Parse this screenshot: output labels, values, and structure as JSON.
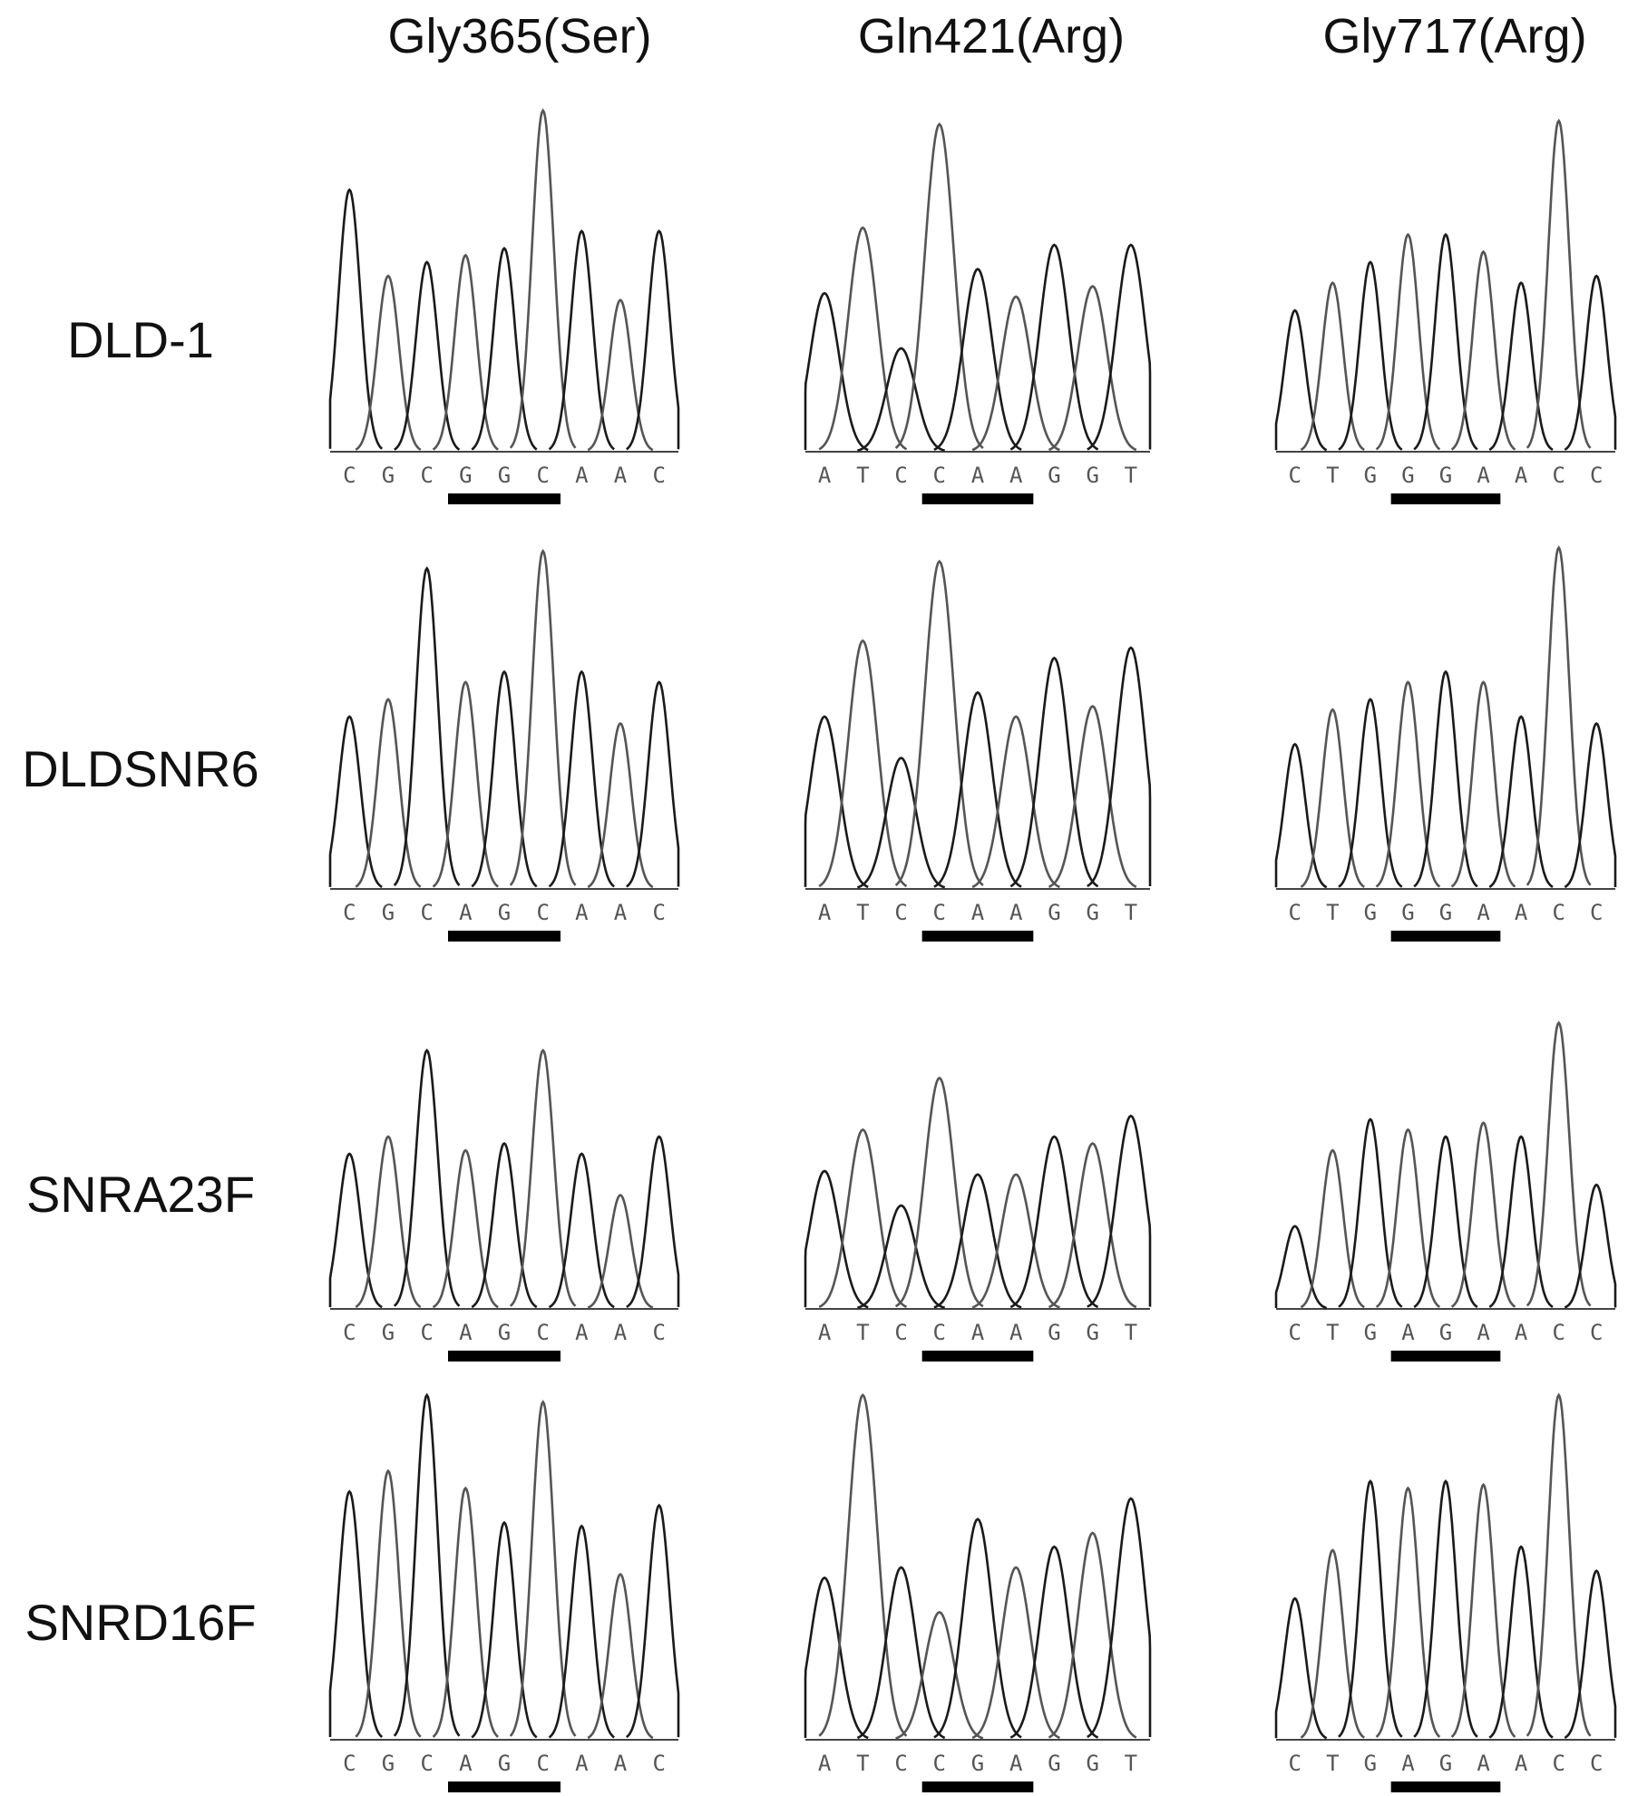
{
  "headers": [
    "Gly365(Ser)",
    "Gln421(Arg)",
    "Gly717(Arg)"
  ],
  "rows": [
    {
      "label": "DLD-1",
      "sequences": [
        [
          "C",
          "G",
          "C",
          "G",
          "G",
          "C",
          "A",
          "A",
          "C"
        ],
        [
          "A",
          "T",
          "C",
          "C",
          "A",
          "A",
          "G",
          "G",
          "T"
        ],
        [
          "C",
          "T",
          "G",
          "G",
          "G",
          "A",
          "A",
          "C",
          "C"
        ]
      ]
    },
    {
      "label": "DLDSNR6",
      "sequences": [
        [
          "C",
          "G",
          "C",
          "A",
          "G",
          "C",
          "A",
          "A",
          "C"
        ],
        [
          "A",
          "T",
          "C",
          "C",
          "A",
          "A",
          "G",
          "G",
          "T"
        ],
        [
          "C",
          "T",
          "G",
          "G",
          "G",
          "A",
          "A",
          "C",
          "C"
        ]
      ]
    },
    {
      "label": "SNRA23F",
      "sequences": [
        [
          "C",
          "G",
          "C",
          "A",
          "G",
          "C",
          "A",
          "A",
          "C"
        ],
        [
          "A",
          "T",
          "C",
          "C",
          "A",
          "A",
          "G",
          "G",
          "T"
        ],
        [
          "C",
          "T",
          "G",
          "A",
          "G",
          "A",
          "A",
          "C",
          "C"
        ]
      ]
    },
    {
      "label": "SNRD16F",
      "sequences": [
        [
          "C",
          "G",
          "C",
          "A",
          "G",
          "C",
          "A",
          "A",
          "C"
        ],
        [
          "A",
          "T",
          "C",
          "C",
          "G",
          "A",
          "G",
          "G",
          "T"
        ],
        [
          "C",
          "T",
          "G",
          "A",
          "G",
          "A",
          "A",
          "C",
          "C"
        ]
      ]
    }
  ]
}
